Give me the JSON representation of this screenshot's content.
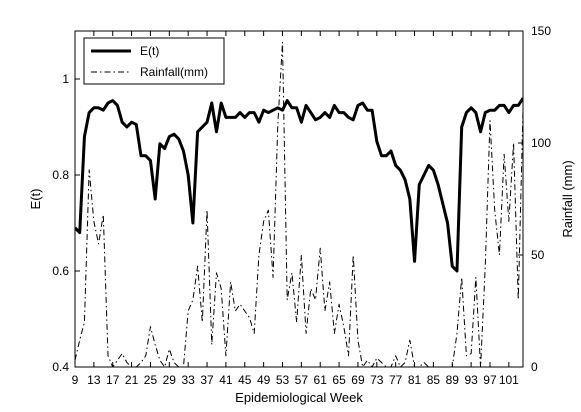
{
  "chart_data": {
    "type": "line",
    "xlabel": "Epidemiological Week",
    "ylabel_left": "E(t)",
    "ylabel_right": "Rainfall (mm)",
    "xlim": [
      9,
      104
    ],
    "ylim_left": [
      0.4,
      1.1
    ],
    "ylim_right": [
      0,
      150
    ],
    "xticks": [
      9,
      13,
      17,
      21,
      25,
      29,
      33,
      37,
      41,
      45,
      49,
      53,
      57,
      61,
      65,
      69,
      73,
      77,
      81,
      85,
      89,
      93,
      97,
      101
    ],
    "xtick_labels": [
      "9",
      "13",
      "17",
      "21",
      "25",
      "29",
      "33",
      "37",
      "41",
      "45",
      "49",
      "53",
      "57",
      "61",
      "65",
      "69",
      "73",
      "77",
      "81",
      "85",
      "89",
      "93",
      "97",
      "101"
    ],
    "yticks_left": [
      0.4,
      0.6,
      0.8,
      1
    ],
    "ytick_labels_left": [
      "0.4",
      "0.6",
      "0.8",
      "1"
    ],
    "yticks_right": [
      0,
      50,
      100,
      150
    ],
    "ytick_labels_right": [
      "0",
      "50",
      "100",
      "150"
    ],
    "grid": false,
    "legend_position": "top-left",
    "series": [
      {
        "name": "E(t)",
        "axis": "left",
        "style": "solid",
        "color": "#000000",
        "x": [
          9,
          10,
          11,
          12,
          13,
          14,
          15,
          16,
          17,
          18,
          19,
          20,
          21,
          22,
          23,
          24,
          25,
          26,
          27,
          28,
          29,
          30,
          31,
          32,
          33,
          34,
          35,
          36,
          37,
          38,
          39,
          40,
          41,
          42,
          43,
          44,
          45,
          46,
          47,
          48,
          49,
          50,
          51,
          52,
          53,
          54,
          55,
          56,
          57,
          58,
          59,
          60,
          61,
          62,
          63,
          64,
          65,
          66,
          67,
          68,
          69,
          70,
          71,
          72,
          73,
          74,
          75,
          76,
          77,
          78,
          79,
          80,
          81,
          82,
          83,
          84,
          85,
          86,
          87,
          88,
          89,
          90,
          91,
          92,
          93,
          94,
          95,
          96,
          97,
          98,
          99,
          100,
          101,
          102,
          103,
          104
        ],
        "values": [
          0.69,
          0.68,
          0.88,
          0.93,
          0.94,
          0.94,
          0.935,
          0.95,
          0.955,
          0.945,
          0.91,
          0.9,
          0.91,
          0.905,
          0.84,
          0.84,
          0.83,
          0.75,
          0.865,
          0.855,
          0.88,
          0.885,
          0.875,
          0.85,
          0.8,
          0.7,
          0.89,
          0.9,
          0.91,
          0.95,
          0.89,
          0.95,
          0.92,
          0.92,
          0.92,
          0.93,
          0.92,
          0.93,
          0.93,
          0.91,
          0.935,
          0.93,
          0.935,
          0.94,
          0.935,
          0.955,
          0.94,
          0.94,
          0.91,
          0.945,
          0.93,
          0.915,
          0.92,
          0.93,
          0.92,
          0.945,
          0.93,
          0.93,
          0.92,
          0.915,
          0.945,
          0.95,
          0.935,
          0.935,
          0.87,
          0.84,
          0.84,
          0.85,
          0.82,
          0.81,
          0.79,
          0.75,
          0.62,
          0.78,
          0.8,
          0.82,
          0.81,
          0.78,
          0.74,
          0.7,
          0.61,
          0.6,
          0.9,
          0.93,
          0.94,
          0.93,
          0.89,
          0.93,
          0.935,
          0.935,
          0.945,
          0.945,
          0.93,
          0.945,
          0.945,
          0.96
        ]
      },
      {
        "name": "Rainfall(mm)",
        "axis": "right",
        "style": "dashdot",
        "color": "#000000",
        "x": [
          9,
          10,
          11,
          12,
          13,
          14,
          15,
          16,
          17,
          18,
          19,
          20,
          21,
          22,
          23,
          24,
          25,
          26,
          27,
          28,
          29,
          30,
          31,
          32,
          33,
          34,
          35,
          36,
          37,
          38,
          39,
          40,
          41,
          42,
          43,
          44,
          45,
          46,
          47,
          48,
          49,
          50,
          51,
          52,
          53,
          54,
          55,
          56,
          57,
          58,
          59,
          60,
          61,
          62,
          63,
          64,
          65,
          66,
          67,
          68,
          69,
          70,
          71,
          72,
          73,
          74,
          75,
          76,
          77,
          78,
          79,
          80,
          81,
          82,
          83,
          84,
          85,
          86,
          87,
          88,
          89,
          90,
          91,
          92,
          93,
          94,
          95,
          96,
          97,
          98,
          99,
          100,
          101,
          102,
          103,
          104
        ],
        "values": [
          3,
          12,
          20,
          88,
          65,
          55,
          68,
          5,
          0,
          3,
          6,
          2,
          0,
          0,
          2,
          5,
          18,
          10,
          3,
          0,
          8,
          2,
          0,
          0,
          25,
          30,
          45,
          20,
          70,
          10,
          42,
          35,
          5,
          38,
          25,
          28,
          25,
          22,
          15,
          50,
          65,
          70,
          40,
          108,
          145,
          30,
          42,
          20,
          50,
          15,
          35,
          30,
          53,
          25,
          38,
          15,
          28,
          18,
          5,
          50,
          12,
          0,
          3,
          0,
          4,
          2,
          0,
          0,
          5,
          0,
          2,
          12,
          0,
          0,
          2,
          0,
          0,
          0,
          0,
          0,
          0,
          15,
          40,
          5,
          6,
          40,
          0,
          45,
          110,
          70,
          50,
          95,
          65,
          100,
          30,
          115
        ]
      }
    ]
  }
}
